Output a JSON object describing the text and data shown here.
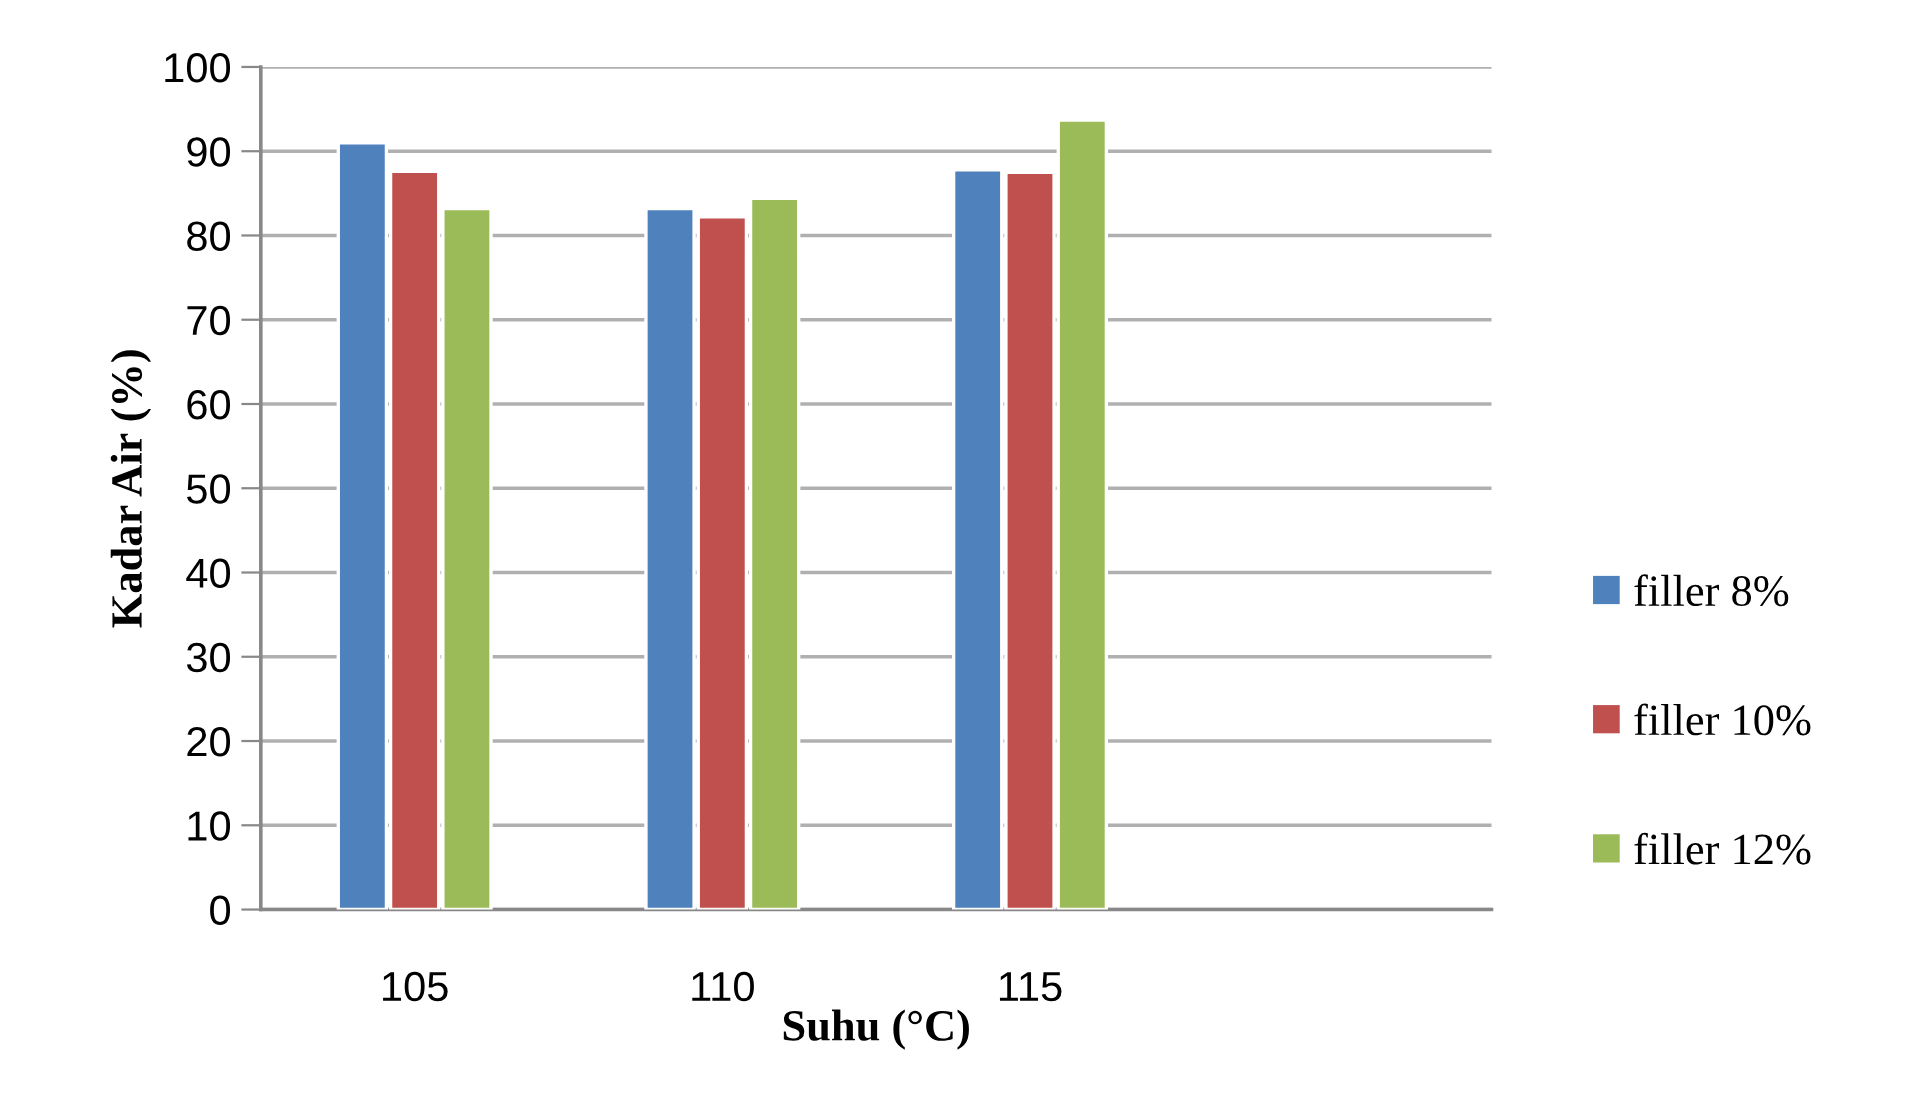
{
  "chart_data": {
    "type": "bar",
    "xlabel": "Suhu (°C)",
    "ylabel": "Kadar Air (%)",
    "categories": [
      "105",
      "110",
      "115",
      null
    ],
    "series": [
      {
        "name": "filler 8%",
        "color": "#4f81bd",
        "values": [
          91.0,
          83.2,
          87.8,
          null
        ]
      },
      {
        "name": "filler 10%",
        "color": "#c0504d",
        "values": [
          87.6,
          82.2,
          87.5,
          null
        ]
      },
      {
        "name": "filler 12%",
        "color": "#9bbb59",
        "values": [
          83.2,
          84.4,
          93.7,
          null
        ]
      }
    ],
    "ylim": [
      0,
      100
    ],
    "yticks": [
      0,
      10,
      20,
      30,
      40,
      50,
      60,
      70,
      80,
      90,
      100
    ],
    "grid": "y",
    "legend": "right"
  }
}
